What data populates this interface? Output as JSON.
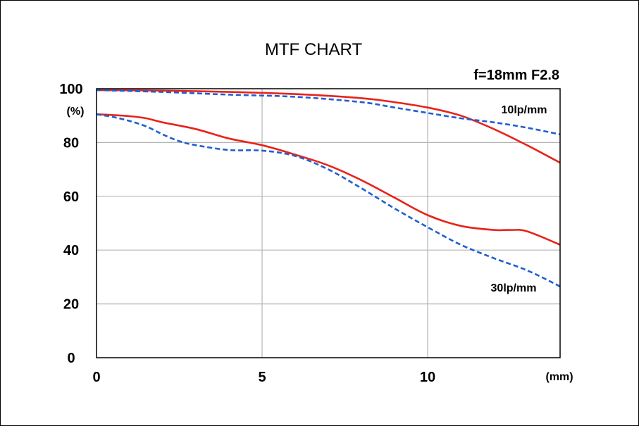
{
  "chart_data": {
    "type": "line",
    "title": "MTF CHART",
    "subtitle": "f=18mm F2.8",
    "y_unit": "(%)",
    "x_unit": "(mm)",
    "xlim": [
      0,
      14
    ],
    "ylim": [
      0,
      100
    ],
    "x_ticks": [
      "0",
      "5",
      "10"
    ],
    "y_ticks": [
      "0",
      "20",
      "40",
      "60",
      "80",
      "100"
    ],
    "grid": true,
    "annotations": [
      "10lp/mm",
      "30lp/mm"
    ],
    "colors": {
      "solid": "#e8231a",
      "dashed": "#1f5fd1"
    },
    "series": [
      {
        "group": "10lp/mm",
        "style": "solid",
        "x": [
          0,
          2,
          4,
          6,
          8,
          9,
          10,
          11,
          12,
          13,
          14
        ],
        "y": [
          99.5,
          99.3,
          98.8,
          98,
          96.5,
          95,
          93,
          90,
          85,
          79,
          72.5
        ]
      },
      {
        "group": "10lp/mm",
        "style": "dashed",
        "x": [
          0,
          2,
          4,
          6,
          8,
          9,
          10,
          11,
          12,
          13,
          14
        ],
        "y": [
          99.5,
          98.8,
          97.8,
          97,
          95,
          93,
          91,
          89,
          87.5,
          85.5,
          83
        ]
      },
      {
        "group": "30lp/mm",
        "style": "solid",
        "x": [
          0,
          0.5,
          1,
          1.5,
          2,
          3,
          4,
          5,
          6,
          7,
          8,
          9,
          10,
          11,
          12,
          12.5,
          13,
          14
        ],
        "y": [
          90.5,
          90.2,
          89.8,
          89,
          87.5,
          85,
          81.5,
          79,
          75.5,
          71.5,
          66,
          59.5,
          53,
          49,
          47.5,
          47.5,
          47,
          42
        ]
      },
      {
        "group": "30lp/mm",
        "style": "dashed",
        "x": [
          0,
          0.5,
          1,
          1.5,
          2,
          2.5,
          3,
          4,
          5,
          6,
          7,
          8,
          9,
          10,
          11,
          12,
          13,
          14
        ],
        "y": [
          90.5,
          89.5,
          88,
          86,
          83,
          80.5,
          79,
          77.2,
          77,
          75,
          70,
          63,
          55.5,
          48.5,
          42,
          37,
          32.5,
          26.5
        ]
      }
    ]
  }
}
